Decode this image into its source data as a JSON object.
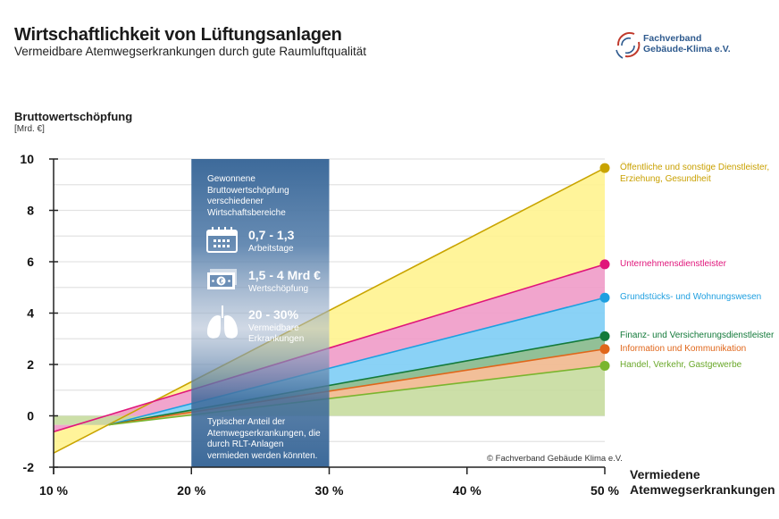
{
  "header": {
    "title": "Wirtschaftlichkeit von Lüftungsanlagen",
    "subtitle": "Vermeidbare Atemwegserkrankungen durch gute Raumluftqualität"
  },
  "logo": {
    "line1": "Fachverband",
    "line2": "Gebäude-Klima e.V.",
    "colors": {
      "red": "#c0392b",
      "blue": "#2e5a8e"
    }
  },
  "info_box": {
    "heading": [
      "Gewonnene",
      "Bruttowertschöpfung",
      "verschiedener",
      "Wirtschaftsbereiche"
    ],
    "stats": [
      {
        "icon": "calendar-icon",
        "value": "0,7 - 1,3",
        "label": "Arbeitstage"
      },
      {
        "icon": "money-icon",
        "value": "1,5 - 4 Mrd €",
        "label": "Wertschöpfung"
      },
      {
        "icon": "lungs-icon",
        "value": "20 - 30%",
        "label": "Vermeidbare Erkrankungen"
      }
    ],
    "footer": [
      "Typischer Anteil der",
      "Atemwegserkrankungen, die",
      "durch RLT-Anlagen",
      "vermieden werden könnten."
    ],
    "range": [
      20,
      30
    ],
    "color": "#3d6a9a"
  },
  "copyright": "© Fachverband Gebäude Klima e.V.",
  "chart_data": {
    "type": "area",
    "title": "Wirtschaftlichkeit von Lüftungsanlagen",
    "subtitle": "Vermeidbare Atemwegserkrankungen durch gute Raumluftqualität",
    "ylabel": "Bruttowertschöpfung",
    "yunit": "[Mrd. €]",
    "xlabel": [
      "Vermiedene",
      "Atemwegserkrankungen"
    ],
    "xlim": [
      10,
      50
    ],
    "ylim": [
      -2,
      10
    ],
    "xticks": [
      10,
      20,
      30,
      40,
      50
    ],
    "xtick_labels": [
      "10 %",
      "20 %",
      "30 %",
      "40 %",
      "50 %"
    ],
    "yticks": [
      -2,
      0,
      2,
      4,
      6,
      8,
      10
    ],
    "ytick_labels": [
      "-2",
      "0",
      "2",
      "4",
      "6",
      "8",
      "10"
    ],
    "grid": true,
    "legend_position": "right",
    "series": [
      {
        "name": "Öffentliche und sonstige Dienstleister, Erziehung, Gesundheit",
        "label_lines": [
          "Öffentliche und sonstige Dienstleister,",
          "Erziehung, Gesundheit"
        ],
        "line_color": "#c9a400",
        "fill_color": "#fff38f",
        "label_color": "#c9a000",
        "x": [
          10,
          50
        ],
        "y": [
          -1.45,
          9.65
        ]
      },
      {
        "name": "Unternehmensdienstleister",
        "label_lines": [
          "Unternehmensdienstleister"
        ],
        "line_color": "#e0157a",
        "fill_color": "#ef9bc8",
        "label_color": "#e0157a",
        "x": [
          10,
          50
        ],
        "y": [
          -0.62,
          5.9
        ]
      },
      {
        "name": "Grundstücks- und Wohnungswesen",
        "label_lines": [
          "Grundstücks- und Wohnungswesen"
        ],
        "line_color": "#1e9fe0",
        "fill_color": "#7dcdf5",
        "label_color": "#1e9fe0",
        "x": [
          14,
          50
        ],
        "y": [
          -0.35,
          4.6
        ]
      },
      {
        "name": "Finanz- und Versicherungsdienstleister",
        "label_lines": [
          "Finanz- und Versicherungsdienstleister"
        ],
        "line_color": "#137a3a",
        "fill_color": "#86b98c",
        "label_color": "#137a3a",
        "x": [
          14,
          50
        ],
        "y": [
          -0.35,
          3.1
        ]
      },
      {
        "name": "Information und Kommunikation",
        "label_lines": [
          "Information und Kommunikation"
        ],
        "line_color": "#e0661a",
        "fill_color": "#f1b88e",
        "label_color": "#e0661a",
        "x": [
          14,
          50
        ],
        "y": [
          -0.35,
          2.6
        ]
      },
      {
        "name": "Handel, Verkehr, Gastgewerbe",
        "label_lines": [
          "Handel, Verkehr, Gastgewerbe"
        ],
        "line_color": "#7ab52e",
        "fill_color": "#c7dc9e",
        "label_color": "#6aa82a",
        "x": [
          14,
          50
        ],
        "y": [
          -0.35,
          1.95
        ]
      }
    ]
  }
}
